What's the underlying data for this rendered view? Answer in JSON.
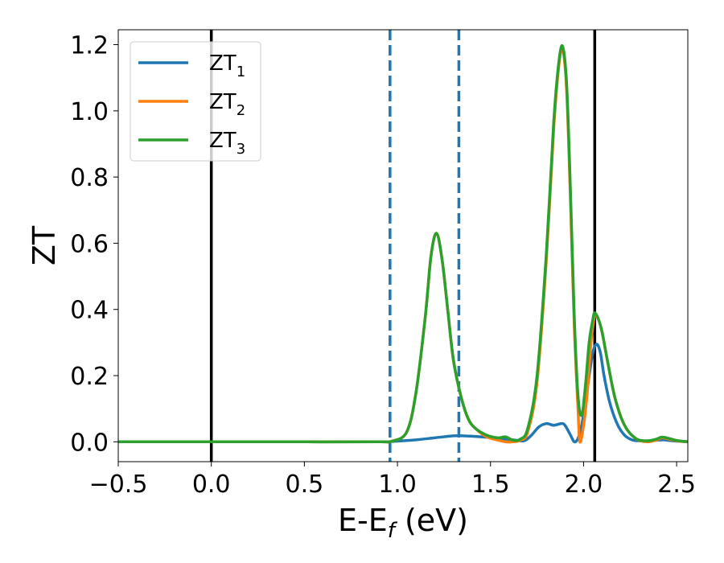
{
  "chart_data": {
    "type": "line",
    "xlabel": {
      "main": "E-E",
      "sub": "f",
      "suffix": " (eV)"
    },
    "ylabel": "ZT",
    "xlim": [
      -0.5,
      2.56
    ],
    "ylim": [
      -0.06,
      1.245
    ],
    "xticks": [
      -0.5,
      0.0,
      0.5,
      1.0,
      1.5,
      2.0,
      2.5
    ],
    "xtick_labels": [
      "−0.5",
      "0.0",
      "0.5",
      "1.0",
      "1.5",
      "2.0",
      "2.5"
    ],
    "yticks": [
      0.0,
      0.2,
      0.4,
      0.6,
      0.8,
      1.0,
      1.2
    ],
    "ytick_labels": [
      "0.0",
      "0.2",
      "0.4",
      "0.6",
      "0.8",
      "1.0",
      "1.2"
    ],
    "grid": false,
    "legend_position": "top-left",
    "vlines": [
      {
        "x": 0.0,
        "style": "solid",
        "color": "#000000"
      },
      {
        "x": 2.06,
        "style": "solid",
        "color": "#000000"
      },
      {
        "x": 0.96,
        "style": "dashed",
        "color": "#1f77b4"
      },
      {
        "x": 1.33,
        "style": "dashed",
        "color": "#1f77b4"
      }
    ],
    "series": [
      {
        "name": "ZT",
        "name_sub": "1",
        "color": "#1f77b4",
        "x": [
          -0.5,
          0.0,
          0.5,
          0.9,
          1.0,
          1.1,
          1.2,
          1.3,
          1.35,
          1.45,
          1.55,
          1.62,
          1.68,
          1.72,
          1.76,
          1.8,
          1.84,
          1.88,
          1.9,
          1.93,
          1.95,
          1.97,
          1.99,
          2.01,
          2.03,
          2.05,
          2.07,
          2.09,
          2.11,
          2.14,
          2.18,
          2.22,
          2.26,
          2.3,
          2.35,
          2.4,
          2.43,
          2.46,
          2.5,
          2.56
        ],
        "y": [
          0.0,
          0.0,
          0.0,
          0.0,
          0.002,
          0.006,
          0.012,
          0.018,
          0.018,
          0.015,
          0.01,
          0.006,
          0.003,
          0.02,
          0.045,
          0.055,
          0.05,
          0.055,
          0.05,
          0.02,
          0.0,
          0.01,
          0.05,
          0.12,
          0.2,
          0.27,
          0.295,
          0.27,
          0.2,
          0.12,
          0.055,
          0.02,
          0.006,
          0.003,
          0.003,
          0.005,
          0.006,
          0.004,
          0.002,
          0.0
        ]
      },
      {
        "name": "ZT",
        "name_sub": "2",
        "color": "#ff7f0e",
        "x": [
          -0.5,
          0.0,
          0.5,
          0.9,
          0.97,
          1.05,
          1.1,
          1.15,
          1.18,
          1.21,
          1.24,
          1.27,
          1.3,
          1.34,
          1.38,
          1.42,
          1.48,
          1.54,
          1.58,
          1.62,
          1.66,
          1.7,
          1.75,
          1.8,
          1.84,
          1.87,
          1.89,
          1.91,
          1.93,
          1.95,
          1.97,
          1.98,
          2.0,
          2.02,
          2.04,
          2.06,
          2.08,
          2.1,
          2.13,
          2.17,
          2.22,
          2.28,
          2.34,
          2.39,
          2.42,
          2.46,
          2.5,
          2.56
        ],
        "y": [
          0.0,
          0.0,
          0.0,
          0.0,
          0.002,
          0.03,
          0.15,
          0.38,
          0.56,
          0.63,
          0.55,
          0.4,
          0.25,
          0.14,
          0.07,
          0.04,
          0.015,
          0.005,
          0.0,
          0.0,
          0.005,
          0.03,
          0.18,
          0.55,
          0.95,
          1.15,
          1.18,
          1.05,
          0.72,
          0.35,
          0.1,
          0.0,
          0.05,
          0.15,
          0.3,
          0.38,
          0.37,
          0.33,
          0.24,
          0.13,
          0.05,
          0.01,
          0.0,
          0.005,
          0.012,
          0.008,
          0.003,
          0.0
        ]
      },
      {
        "name": "ZT",
        "name_sub": "3",
        "color": "#2ca02c",
        "x": [
          -0.5,
          0.0,
          0.5,
          0.9,
          0.97,
          1.05,
          1.1,
          1.15,
          1.18,
          1.21,
          1.24,
          1.27,
          1.3,
          1.34,
          1.38,
          1.42,
          1.48,
          1.54,
          1.58,
          1.62,
          1.66,
          1.7,
          1.75,
          1.8,
          1.84,
          1.87,
          1.89,
          1.91,
          1.93,
          1.95,
          1.97,
          1.99,
          2.01,
          2.03,
          2.05,
          2.06,
          2.08,
          2.1,
          2.13,
          2.17,
          2.22,
          2.28,
          2.34,
          2.39,
          2.42,
          2.46,
          2.5,
          2.56
        ],
        "y": [
          0.0,
          0.0,
          0.0,
          0.0,
          0.002,
          0.03,
          0.15,
          0.38,
          0.56,
          0.63,
          0.55,
          0.4,
          0.25,
          0.14,
          0.07,
          0.04,
          0.02,
          0.012,
          0.015,
          0.005,
          0.008,
          0.04,
          0.2,
          0.57,
          0.97,
          1.16,
          1.19,
          1.07,
          0.75,
          0.38,
          0.14,
          0.08,
          0.17,
          0.3,
          0.37,
          0.39,
          0.37,
          0.33,
          0.24,
          0.13,
          0.05,
          0.01,
          0.003,
          0.008,
          0.014,
          0.01,
          0.004,
          0.0
        ]
      }
    ]
  }
}
